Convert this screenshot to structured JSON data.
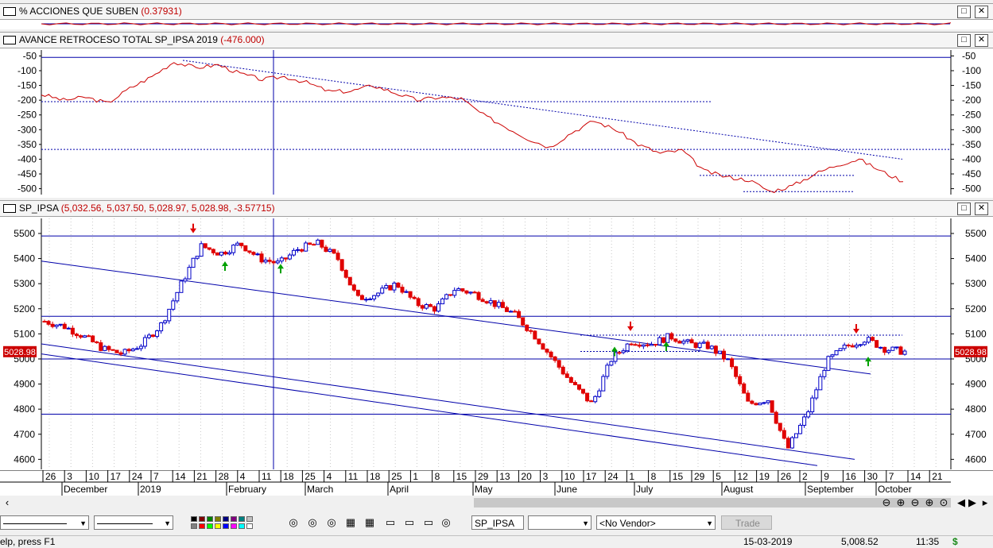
{
  "panes": {
    "acciones": {
      "title": "% ACCIONES QUE SUBEN",
      "value": "(0.37931)"
    },
    "avance": {
      "title": "AVANCE RETROCESO TOTAL SP_IPSA 2019",
      "value": "(-476.000)"
    },
    "price": {
      "title": "SP_IPSA",
      "value": "(5,032.56, 5,037.50, 5,028.97, 5,028.98, -3.57715)"
    }
  },
  "window_buttons": {
    "restore": "□",
    "close": "✕"
  },
  "avance_axis": [
    "-50",
    "-100",
    "-150",
    "-200",
    "-250",
    "-300",
    "-350",
    "-400",
    "-450",
    "-500"
  ],
  "price_axis": [
    "5500",
    "5400",
    "5300",
    "5200",
    "5100",
    "5000",
    "4900",
    "4800",
    "4700",
    "4600"
  ],
  "last_price_tag": "5028.98",
  "date_axis": {
    "days": [
      "26",
      "3",
      "10",
      "17",
      "24",
      "7",
      "14",
      "21",
      "28",
      "4",
      "11",
      "18",
      "25",
      "4",
      "11",
      "18",
      "25",
      "1",
      "8",
      "15",
      "29",
      "13",
      "20",
      "3",
      "10",
      "17",
      "24",
      "1",
      "8",
      "15",
      "29",
      "5",
      "12",
      "19",
      "26",
      "2",
      "9",
      "16",
      "30",
      "7",
      "14",
      "21"
    ],
    "months": [
      "December",
      "2019",
      "February",
      "March",
      "April",
      "May",
      "June",
      "July",
      "August",
      "September",
      "October"
    ]
  },
  "chart_data": {
    "type": "candlestick",
    "title": "SP_IPSA",
    "ohlc_last": {
      "open": 5032.56,
      "high": 5037.5,
      "low": 5028.97,
      "close": 5028.98,
      "change": -3.57715
    },
    "ylim": [
      4560,
      5560
    ],
    "horizontal_levels": [
      5490,
      5170,
      5000,
      4780
    ],
    "closes_weekly": [
      5150,
      5130,
      5090,
      5040,
      5020,
      5060,
      5140,
      5300,
      5450,
      5420,
      5460,
      5400,
      5380,
      5440,
      5460,
      5400,
      5240,
      5260,
      5300,
      5220,
      5200,
      5280,
      5260,
      5220,
      5180,
      5100,
      5000,
      4900,
      4820,
      5000,
      5070,
      5060,
      5090,
      5060,
      5050,
      4990,
      4820,
      4840,
      4640,
      4780,
      4990,
      5050,
      5080,
      5040,
      5029
    ],
    "avance_ylim": [
      -520,
      -30
    ],
    "avance_values": [
      -180,
      -200,
      -190,
      -210,
      -160,
      -120,
      -70,
      -90,
      -80,
      -110,
      -130,
      -120,
      -140,
      -170,
      -170,
      -150,
      -175,
      -200,
      -190,
      -195,
      -250,
      -290,
      -330,
      -360,
      -310,
      -270,
      -300,
      -350,
      -380,
      -370,
      -440,
      -460,
      -470,
      -510,
      -490,
      -450,
      -420,
      -400,
      -440,
      -476
    ]
  },
  "toolbar": {
    "symbol": "SP_IPSA",
    "vendor": "<No Vendor>",
    "trade": "Trade"
  },
  "status": {
    "hint": "elp, press F1",
    "date": "15-03-2019",
    "price": "5,008.52",
    "time": "11:35",
    "dollar": "$"
  },
  "colors": {
    "up": "#0000c8",
    "down": "#e00000",
    "line": "#cc0000",
    "grid": "#0000aa"
  }
}
